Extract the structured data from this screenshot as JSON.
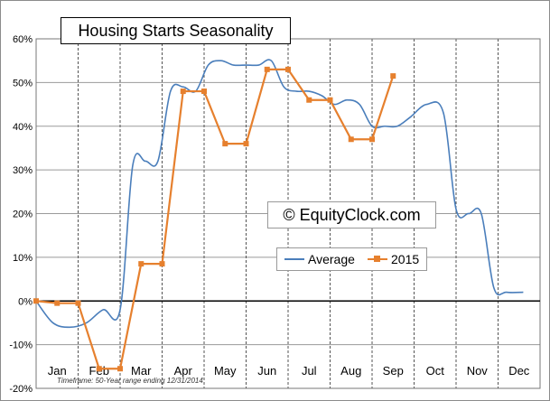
{
  "chart_data": {
    "type": "line",
    "title": "Housing Starts Seasonality",
    "watermark": "© EquityClock.com",
    "footnote": "Timeframe: 50-Year range ending 12/31/2014",
    "ylim": [
      -20,
      60
    ],
    "yticks": [
      "-20%",
      "-10%",
      "0%",
      "10%",
      "20%",
      "30%",
      "40%",
      "50%",
      "60%"
    ],
    "months": [
      "Jan",
      "Feb",
      "Mar",
      "Apr",
      "May",
      "Jun",
      "Jul",
      "Aug",
      "Sep",
      "Oct",
      "Nov",
      "Dec"
    ],
    "grid": true,
    "legend_position": "center-right",
    "series": [
      {
        "name": "Average",
        "color": "#4a7ebb",
        "marker": "none",
        "points": [
          [
            0,
            0
          ],
          [
            0.4,
            -5
          ],
          [
            0.8,
            -6
          ],
          [
            1.2,
            -5
          ],
          [
            1.6,
            -2
          ],
          [
            2.0,
            -2
          ],
          [
            2.3,
            31
          ],
          [
            2.6,
            32
          ],
          [
            2.9,
            32
          ],
          [
            3.2,
            48
          ],
          [
            3.5,
            49
          ],
          [
            3.8,
            48
          ],
          [
            4.1,
            54
          ],
          [
            4.4,
            55
          ],
          [
            4.7,
            54
          ],
          [
            5.0,
            54
          ],
          [
            5.3,
            54
          ],
          [
            5.6,
            55
          ],
          [
            5.9,
            49
          ],
          [
            6.2,
            48
          ],
          [
            6.5,
            48
          ],
          [
            6.8,
            47
          ],
          [
            7.1,
            45
          ],
          [
            7.4,
            46
          ],
          [
            7.7,
            45
          ],
          [
            8.0,
            40
          ],
          [
            8.3,
            40
          ],
          [
            8.6,
            40
          ],
          [
            8.9,
            42
          ],
          [
            9.3,
            45
          ],
          [
            9.7,
            43
          ],
          [
            10.0,
            21
          ],
          [
            10.3,
            20
          ],
          [
            10.6,
            20
          ],
          [
            10.9,
            3
          ],
          [
            11.2,
            2
          ],
          [
            11.6,
            2
          ]
        ]
      },
      {
        "name": "2015",
        "color": "#e6802e",
        "marker": "square",
        "points": [
          [
            0,
            0
          ],
          [
            0.5,
            -0.5
          ],
          [
            1.0,
            -0.5
          ],
          [
            1.5,
            -15.5
          ],
          [
            2.0,
            -15.5
          ],
          [
            2.5,
            8.5
          ],
          [
            3.0,
            8.5
          ],
          [
            3.5,
            48
          ],
          [
            4.0,
            48
          ],
          [
            4.5,
            36
          ],
          [
            5.0,
            36
          ],
          [
            5.5,
            53
          ],
          [
            6.0,
            53
          ],
          [
            6.5,
            46
          ],
          [
            7.0,
            46
          ],
          [
            7.5,
            37
          ],
          [
            8.0,
            37
          ],
          [
            8.5,
            51.5
          ]
        ]
      }
    ]
  }
}
